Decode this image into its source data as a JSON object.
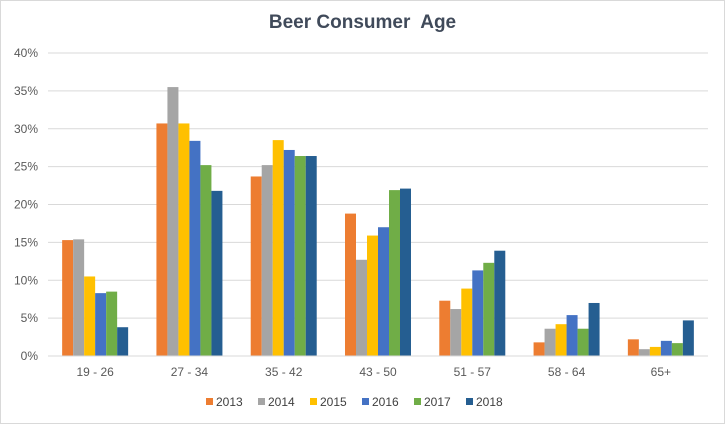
{
  "chart_data": {
    "type": "bar",
    "title": "Beer Consumer  Age",
    "categories": [
      "19 - 26",
      "27 - 34",
      "35 - 42",
      "43 - 50",
      "51 - 57",
      "58 - 64",
      "65+"
    ],
    "series": [
      {
        "name": "2013",
        "color": "#ed7d31",
        "values": [
          15.3,
          30.7,
          23.7,
          18.8,
          7.3,
          1.8,
          2.2
        ]
      },
      {
        "name": "2014",
        "color": "#a5a5a5",
        "values": [
          15.4,
          35.5,
          25.2,
          12.7,
          6.2,
          3.6,
          0.9
        ]
      },
      {
        "name": "2015",
        "color": "#ffc000",
        "values": [
          10.5,
          30.7,
          28.5,
          15.9,
          8.9,
          4.2,
          1.2
        ]
      },
      {
        "name": "2016",
        "color": "#4472c4",
        "values": [
          8.3,
          28.4,
          27.2,
          17.0,
          11.3,
          5.4,
          2.0
        ]
      },
      {
        "name": "2017",
        "color": "#70ad47",
        "values": [
          8.5,
          25.2,
          26.4,
          21.9,
          12.3,
          3.6,
          1.7
        ]
      },
      {
        "name": "2018",
        "color": "#255e91",
        "values": [
          3.8,
          21.8,
          26.4,
          22.1,
          13.9,
          7.0,
          4.7
        ]
      }
    ],
    "yticks": [
      "0%",
      "5%",
      "10%",
      "15%",
      "20%",
      "25%",
      "30%",
      "35%",
      "40%"
    ],
    "ylim": [
      0,
      40
    ],
    "ylabel": "",
    "xlabel": "",
    "grid": true,
    "legend_position": "bottom"
  }
}
